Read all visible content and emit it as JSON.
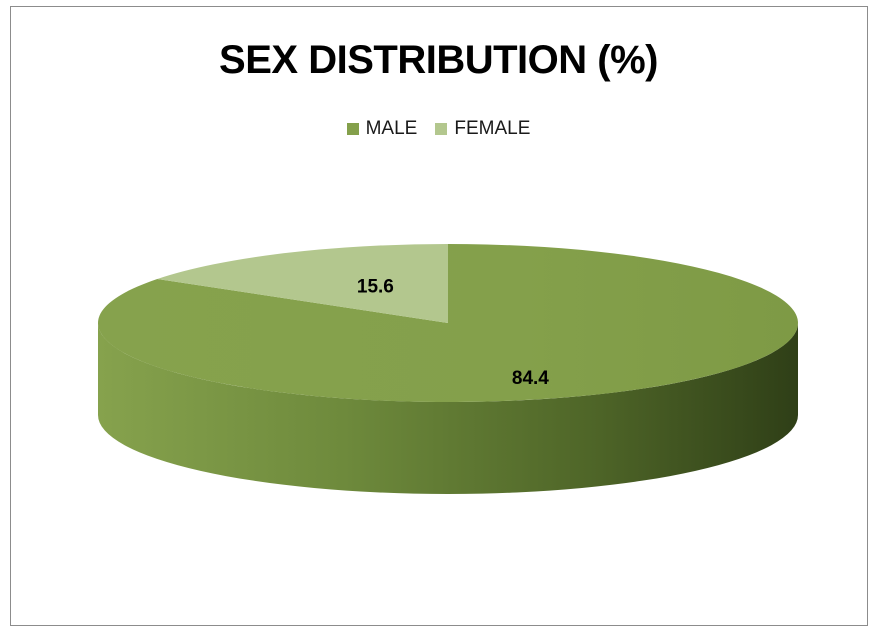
{
  "chart_data": {
    "type": "pie",
    "title": "SEX DISTRIBUTION (%)",
    "categories": [
      "MALE",
      "FEMALE"
    ],
    "values": [
      84.4,
      15.6
    ],
    "data_labels": [
      "84.4",
      "15.6"
    ],
    "colors": [
      "#84A04B",
      "#B3C78E"
    ],
    "legend_position": "top",
    "three_d": true
  }
}
